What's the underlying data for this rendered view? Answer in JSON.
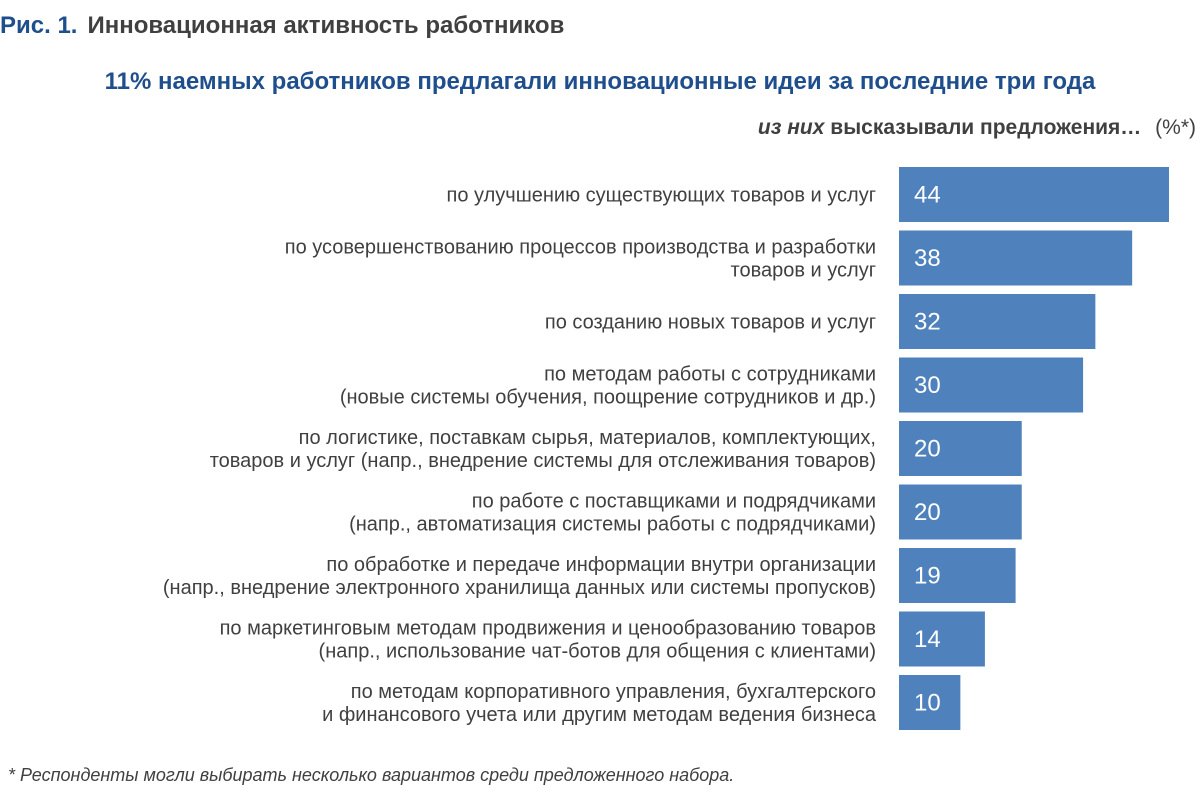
{
  "figure": {
    "number": "Рис. 1.",
    "title": "Инновационная активность работников"
  },
  "headline": "11% наемных работников предлагали инновационные идеи за последние три года",
  "subhead": {
    "emphasis": "из них",
    "text": "высказывали предложения…",
    "unit": "(%*)"
  },
  "chart_data": {
    "type": "bar",
    "orientation": "horizontal",
    "categories": [
      [
        "по улучшению существующих товаров и услуг"
      ],
      [
        "по усовершенствованию процессов производства и разработки",
        "товаров и услуг"
      ],
      [
        "по созданию новых товаров и услуг"
      ],
      [
        "по методам работы с сотрудниками",
        "(новые системы обучения, поощрение сотрудников и др.)"
      ],
      [
        "по логистике, поставкам сырья, материалов, комплектующих,",
        "товаров и услуг (напр., внедрение системы для отслеживания товаров)"
      ],
      [
        "по работе с поставщиками и подрядчиками",
        "(напр., автоматизация системы работы с подрядчиками)"
      ],
      [
        "по обработке и передаче информации внутри организации",
        "(напр., внедрение электронного хранилища данных или системы пропусков)"
      ],
      [
        "по маркетинговым методам продвижения и ценообразованию товаров",
        "(напр., использование чат-ботов для общения с клиентами)"
      ],
      [
        "по методам корпоративного управления, бухгалтерского",
        "и финансового учета или другим методам ведения бизнеса"
      ]
    ],
    "values": [
      44,
      38,
      32,
      30,
      20,
      20,
      19,
      14,
      10
    ],
    "data_labels": [
      "44",
      "38",
      "32",
      "30",
      "20",
      "20",
      "19",
      "14",
      "10"
    ],
    "xlim": [
      0,
      44
    ],
    "grid": false,
    "bar_color": "#4f81bd",
    "label_color": "#ffffff"
  },
  "footnote": "* Респонденты могли выбирать несколько вариантов среди предложенного набора."
}
